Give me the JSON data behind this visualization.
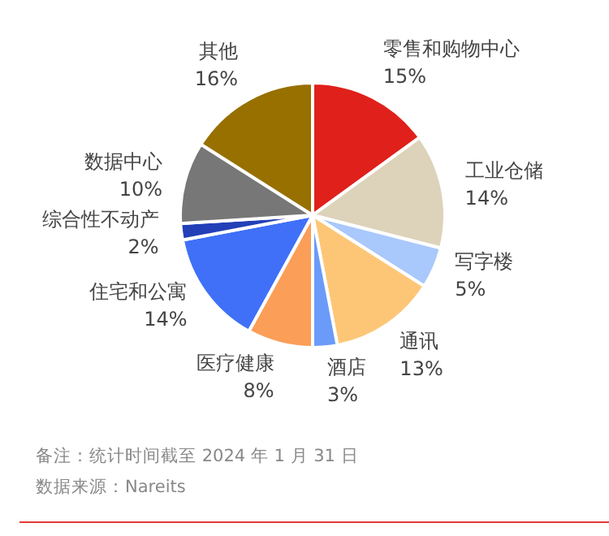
{
  "chart_data": {
    "type": "pie",
    "categories": [
      "零售和购物中心",
      "工业仓储",
      "写字楼",
      "通讯",
      "酒店",
      "医疗健康",
      "住宅和公寓",
      "综合性不动产",
      "数据中心",
      "其他"
    ],
    "values": [
      15,
      14,
      5,
      13,
      3,
      8,
      14,
      2,
      10,
      16
    ],
    "value_labels": [
      "15%",
      "14%",
      "5%",
      "13%",
      "3%",
      "8%",
      "14%",
      "2%",
      "10%",
      "16%"
    ],
    "colors": [
      "#e0201b",
      "#ddd3bb",
      "#a9c8fb",
      "#fdc677",
      "#6b9bf8",
      "#fb9e58",
      "#3f70f7",
      "#2340b8",
      "#777777",
      "#977000"
    ],
    "legend": false,
    "annotations": [
      "备注：统计时间截至 2024 年 1 月 31 日",
      "数据来源：Nareits"
    ]
  }
}
